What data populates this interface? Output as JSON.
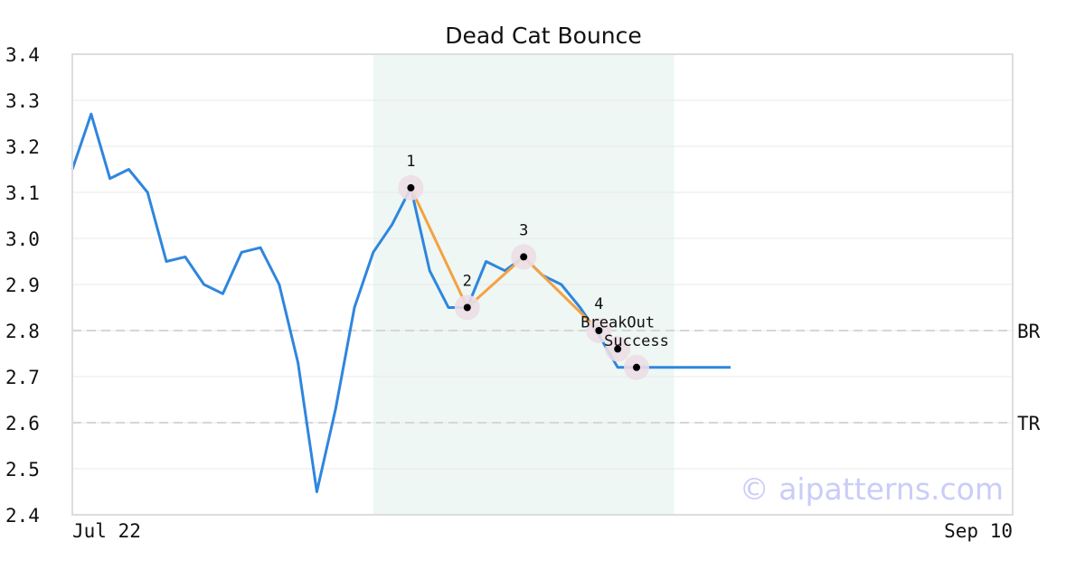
{
  "chart_data": {
    "type": "line",
    "title": "Dead Cat Bounce",
    "xlabel": "",
    "ylabel": "",
    "ylim": [
      2.4,
      3.4
    ],
    "y_ticks": [
      "2.4",
      "2.5",
      "2.6",
      "2.7",
      "2.8",
      "2.9",
      "3.0",
      "3.1",
      "3.2",
      "3.3",
      "3.4"
    ],
    "x_range": [
      "Jul 22",
      "Sep 10"
    ],
    "x_tick_labels": [
      "Jul 22",
      "Sep 10"
    ],
    "grid": true,
    "series": [
      {
        "color": "#2e86de",
        "x": [
          "Jul 22",
          "Jul 23",
          "Jul 24",
          "Jul 25",
          "Jul 26",
          "Jul 27",
          "Jul 28",
          "Jul 29",
          "Jul 30",
          "Jul 31",
          "Aug 1",
          "Aug 2",
          "Aug 3",
          "Aug 4",
          "Aug 5",
          "Aug 6",
          "Aug 7",
          "Aug 8",
          "Aug 9",
          "Aug 10",
          "Aug 11",
          "Aug 12",
          "Aug 13",
          "Aug 14",
          "Aug 15",
          "Aug 16",
          "Aug 17",
          "Aug 18",
          "Aug 19",
          "Aug 20",
          "Aug 21",
          "Aug 22",
          "Aug 23",
          "Aug 24",
          "Aug 25",
          "Aug 26"
        ],
        "values": [
          3.15,
          3.27,
          3.13,
          3.15,
          3.1,
          2.95,
          2.96,
          2.9,
          2.88,
          2.97,
          2.98,
          2.9,
          2.73,
          2.45,
          2.63,
          2.85,
          2.97,
          3.03,
          3.11,
          2.93,
          2.85,
          2.85,
          2.95,
          2.93,
          2.96,
          2.92,
          2.9,
          2.85,
          2.79,
          2.72,
          2.72,
          2.72,
          2.72,
          2.72,
          2.72,
          2.72
        ]
      },
      {
        "color": "#f5a142",
        "x": [
          "Aug 9",
          "Aug 12",
          "Aug 15",
          "Aug 19"
        ],
        "values": [
          3.11,
          2.85,
          2.96,
          2.8
        ]
      }
    ],
    "markers": [
      {
        "x": "Aug 9",
        "y": 3.11,
        "label": "1"
      },
      {
        "x": "Aug 12",
        "y": 2.85,
        "label": "2"
      },
      {
        "x": "Aug 15",
        "y": 2.96,
        "label": "3"
      },
      {
        "x": "Aug 19",
        "y": 2.8,
        "label": "4"
      },
      {
        "x": "Aug 20",
        "y": 2.76,
        "label": "BreakOut"
      },
      {
        "x": "Aug 21",
        "y": 2.72,
        "label": "Success"
      }
    ],
    "reference_lines": [
      {
        "y": 2.8,
        "label": "BR"
      },
      {
        "y": 2.6,
        "label": "TR"
      }
    ],
    "highlight_range": [
      "Aug 7",
      "Aug 23"
    ],
    "colors": {
      "price_line": "#2e86de",
      "pattern_line": "#f5a142",
      "highlight_fill": "#eef7f3",
      "marker_halo": "#ecdde6",
      "reference_line": "#d6d6d6"
    }
  },
  "watermark": "© aipatterns.com"
}
